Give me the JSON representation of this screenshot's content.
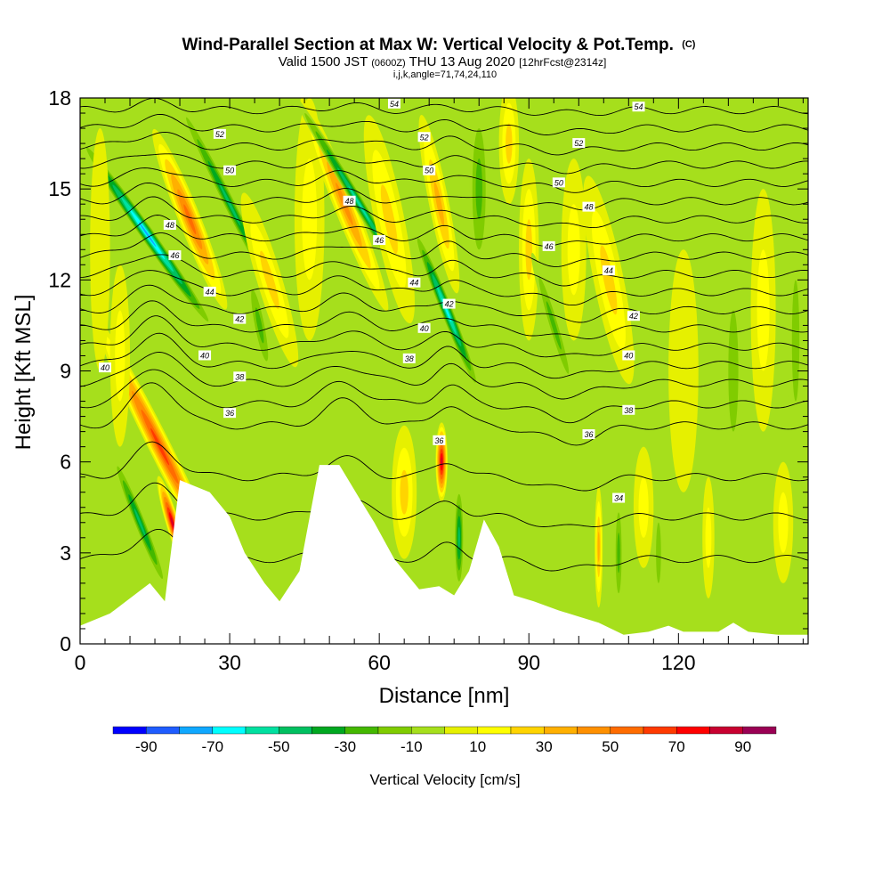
{
  "header": {
    "title_main": "Wind-Parallel Section at Max W: Vertical Velocity & Pot.Temp.",
    "title_mark": "(C)",
    "valid_a": "Valid 1500 JST",
    "valid_b": "(0600Z)",
    "valid_c": "THU 13 Aug 2020",
    "valid_d": "[12hrFcst@2314z]",
    "indices": "i,j,k,angle=71,74,24,110"
  },
  "colors": {
    "plot_bg": "#a6df1c",
    "terrain": "#ffffff",
    "contour": "#000000",
    "palette": [
      "#0000ff",
      "#1f5cff",
      "#10a8ff",
      "#00ffff",
      "#00e0a0",
      "#00c060",
      "#00a820",
      "#44b800",
      "#80cc00",
      "#a6df1c",
      "#e6f000",
      "#ffff00",
      "#ffd400",
      "#ffb000",
      "#ff9000",
      "#ff6c00",
      "#ff3a00",
      "#ff0000",
      "#c80030",
      "#9a0054",
      "#6a0088"
    ]
  },
  "chart_data": {
    "type": "heatmap",
    "xlabel": "Distance [nm]",
    "ylabel": "Height [Kft MSL]",
    "xlim": [
      0,
      146
    ],
    "ylim": [
      0,
      18
    ],
    "x_ticks": [
      "0",
      "30",
      "60",
      "90",
      "120"
    ],
    "y_ticks": [
      "0",
      "3",
      "6",
      "9",
      "12",
      "15",
      "18"
    ],
    "colorbar": {
      "label": "Vertical Velocity [cm/s]",
      "min": -100,
      "max": 100,
      "step": 10,
      "tick_labels": [
        "-90",
        "-70",
        "-50",
        "-30",
        "-10",
        "10",
        "30",
        "50",
        "70",
        "90"
      ]
    },
    "terrain": [
      [
        0,
        0.6
      ],
      [
        6,
        1.0
      ],
      [
        10,
        1.5
      ],
      [
        14,
        2.0
      ],
      [
        17,
        1.4
      ],
      [
        20,
        5.4
      ],
      [
        26,
        5.0
      ],
      [
        30,
        4.2
      ],
      [
        33,
        3.0
      ],
      [
        37,
        2.0
      ],
      [
        40,
        1.4
      ],
      [
        44,
        2.4
      ],
      [
        48,
        5.9
      ],
      [
        52,
        5.9
      ],
      [
        56,
        4.8
      ],
      [
        59,
        4.0
      ],
      [
        63,
        2.8
      ],
      [
        68,
        1.8
      ],
      [
        72,
        1.9
      ],
      [
        75,
        1.6
      ],
      [
        78,
        2.4
      ],
      [
        81,
        4.1
      ],
      [
        84,
        3.2
      ],
      [
        87,
        1.6
      ],
      [
        91,
        1.4
      ],
      [
        96,
        1.1
      ],
      [
        100,
        0.9
      ],
      [
        104,
        0.7
      ],
      [
        109,
        0.3
      ],
      [
        114,
        0.4
      ],
      [
        118,
        0.6
      ],
      [
        121,
        0.4
      ],
      [
        128,
        0.4
      ],
      [
        131,
        0.7
      ],
      [
        134,
        0.4
      ],
      [
        140,
        0.3
      ],
      [
        146,
        0.3
      ]
    ],
    "w_cells": [
      {
        "x": 13.5,
        "z": 13.5,
        "w": -85,
        "sx": 1.5,
        "sz": 4.0,
        "tilt": -0.7
      },
      {
        "x": 16,
        "z": 6.5,
        "w": 78,
        "sx": 2.2,
        "sz": 4.8,
        "tilt": -0.5
      },
      {
        "x": 18.5,
        "z": 4.0,
        "w": 92,
        "sx": 1.3,
        "sz": 1.6,
        "tilt": -0.3
      },
      {
        "x": 12,
        "z": 4.0,
        "w": -55,
        "sx": 1.2,
        "sz": 2.5,
        "tilt": -0.4
      },
      {
        "x": 22,
        "z": 14,
        "w": 60,
        "sx": 2.2,
        "sz": 3.2,
        "tilt": -0.4
      },
      {
        "x": 30,
        "z": 14.5,
        "w": -55,
        "sx": 1.3,
        "sz": 4.0,
        "tilt": -0.5
      },
      {
        "x": 36,
        "z": 10.5,
        "w": -35,
        "sx": 1.4,
        "sz": 1.8,
        "tilt": -0.2
      },
      {
        "x": 38,
        "z": 12,
        "w": 35,
        "sx": 2.5,
        "sz": 3.0,
        "tilt": -0.3
      },
      {
        "x": 46,
        "z": 14,
        "w": 25,
        "sx": 3.0,
        "sz": 4.0,
        "tilt": 0
      },
      {
        "x": 53,
        "z": 14.5,
        "w": 55,
        "sx": 2.2,
        "sz": 3.8,
        "tilt": -0.4
      },
      {
        "x": 56,
        "z": 14.5,
        "w": -65,
        "sx": 1.2,
        "sz": 4.2,
        "tilt": -0.6
      },
      {
        "x": 62,
        "z": 14,
        "w": 30,
        "sx": 3.0,
        "sz": 3.5,
        "tilt": -0.2
      },
      {
        "x": 65,
        "z": 5.0,
        "w": 35,
        "sx": 2.5,
        "sz": 2.2,
        "tilt": 0
      },
      {
        "x": 72.5,
        "z": 6.0,
        "w": 98,
        "sx": 1.2,
        "sz": 1.3,
        "tilt": 0
      },
      {
        "x": 73.5,
        "z": 11.0,
        "w": -70,
        "sx": 1.3,
        "sz": 3.0,
        "tilt": -0.4
      },
      {
        "x": 76,
        "z": 3.5,
        "w": -50,
        "sx": 1.0,
        "sz": 1.8,
        "tilt": 0
      },
      {
        "x": 72,
        "z": 14.5,
        "w": 40,
        "sx": 2.0,
        "sz": 3.0,
        "tilt": -0.2
      },
      {
        "x": 80,
        "z": 15,
        "w": -30,
        "sx": 2.0,
        "sz": 3.0,
        "tilt": 0
      },
      {
        "x": 86,
        "z": 16.5,
        "w": 35,
        "sx": 2.0,
        "sz": 2.0,
        "tilt": 0
      },
      {
        "x": 90,
        "z": 13,
        "w": 30,
        "sx": 2.0,
        "sz": 3.0,
        "tilt": 0
      },
      {
        "x": 95,
        "z": 10.5,
        "w": -35,
        "sx": 1.2,
        "sz": 2.5,
        "tilt": -0.3
      },
      {
        "x": 99,
        "z": 13,
        "w": 20,
        "sx": 2.5,
        "sz": 3.0,
        "tilt": 0
      },
      {
        "x": 104,
        "z": 3.2,
        "w": 45,
        "sx": 0.8,
        "sz": 2.0,
        "tilt": 0
      },
      {
        "x": 108,
        "z": 3.0,
        "w": -30,
        "sx": 0.9,
        "sz": 2.0,
        "tilt": 0
      },
      {
        "x": 106,
        "z": 12,
        "w": 30,
        "sx": 3.0,
        "sz": 3.5,
        "tilt": -0.2
      },
      {
        "x": 113,
        "z": 4.5,
        "w": 25,
        "sx": 2.0,
        "sz": 2.0,
        "tilt": 0
      },
      {
        "x": 116,
        "z": 3.0,
        "w": -22,
        "sx": 1.0,
        "sz": 2.0,
        "tilt": 0
      },
      {
        "x": 121,
        "z": 9.0,
        "w": 18,
        "sx": 3.0,
        "sz": 4.0,
        "tilt": 0
      },
      {
        "x": 126,
        "z": 3.5,
        "w": 20,
        "sx": 1.2,
        "sz": 2.0,
        "tilt": 0
      },
      {
        "x": 131,
        "z": 9.0,
        "w": -25,
        "sx": 2.0,
        "sz": 4.0,
        "tilt": 0
      },
      {
        "x": 137,
        "z": 11,
        "w": 25,
        "sx": 2.5,
        "sz": 4.0,
        "tilt": 0
      },
      {
        "x": 141,
        "z": 4.0,
        "w": 20,
        "sx": 2.0,
        "sz": 2.0,
        "tilt": 0
      },
      {
        "x": 143.5,
        "z": 10,
        "w": -20,
        "sx": 1.5,
        "sz": 4.0,
        "tilt": 0
      },
      {
        "x": 8,
        "z": 9.5,
        "w": 20,
        "sx": 2.0,
        "sz": 3.0,
        "tilt": 0
      },
      {
        "x": 4,
        "z": 13,
        "w": 18,
        "sx": 2.0,
        "sz": 4.0,
        "tilt": 0
      }
    ],
    "theta_lines": [
      {
        "z": 2.8,
        "bump": 1.0
      },
      {
        "z": 4.2,
        "bump": 1.1
      },
      {
        "z": 5.5,
        "bump": 1.2
      },
      {
        "z": 7.2,
        "bump": 1.6
      },
      {
        "z": 7.9,
        "bump": 1.4
      },
      {
        "z": 8.6,
        "bump": 1.2
      },
      {
        "z": 9.2,
        "bump": 1.1
      },
      {
        "z": 9.8,
        "bump": 1.0
      },
      {
        "z": 10.4,
        "bump": 0.9
      },
      {
        "z": 11.0,
        "bump": 0.9
      },
      {
        "z": 11.6,
        "bump": 0.9
      },
      {
        "z": 12.2,
        "bump": 0.8
      },
      {
        "z": 12.8,
        "bump": 0.8
      },
      {
        "z": 13.4,
        "bump": 0.7
      },
      {
        "z": 14.0,
        "bump": 0.7
      },
      {
        "z": 14.6,
        "bump": 0.6
      },
      {
        "z": 15.2,
        "bump": 0.6
      },
      {
        "z": 15.8,
        "bump": 0.5
      },
      {
        "z": 16.4,
        "bump": 0.5
      },
      {
        "z": 17.0,
        "bump": 0.4
      },
      {
        "z": 17.6,
        "bump": 0.3
      }
    ],
    "contour_labels": [
      {
        "text": "34",
        "x": 108,
        "z": 4.8
      },
      {
        "text": "36",
        "x": 72,
        "z": 6.7
      },
      {
        "text": "36",
        "x": 102,
        "z": 6.9
      },
      {
        "text": "36",
        "x": 30,
        "z": 7.6
      },
      {
        "text": "38",
        "x": 32,
        "z": 8.8
      },
      {
        "text": "38",
        "x": 66,
        "z": 9.4
      },
      {
        "text": "38",
        "x": 110,
        "z": 7.7
      },
      {
        "text": "40",
        "x": 5,
        "z": 9.1
      },
      {
        "text": "40",
        "x": 25,
        "z": 9.5
      },
      {
        "text": "40",
        "x": 69,
        "z": 10.4
      },
      {
        "text": "40",
        "x": 110,
        "z": 9.5
      },
      {
        "text": "42",
        "x": 32,
        "z": 10.7
      },
      {
        "text": "42",
        "x": 74,
        "z": 11.2
      },
      {
        "text": "42",
        "x": 111,
        "z": 10.8
      },
      {
        "text": "44",
        "x": 26,
        "z": 11.6
      },
      {
        "text": "44",
        "x": 67,
        "z": 11.9
      },
      {
        "text": "44",
        "x": 106,
        "z": 12.3
      },
      {
        "text": "46",
        "x": 19,
        "z": 12.8
      },
      {
        "text": "46",
        "x": 60,
        "z": 13.3
      },
      {
        "text": "46",
        "x": 94,
        "z": 13.1
      },
      {
        "text": "48",
        "x": 18,
        "z": 13.8
      },
      {
        "text": "48",
        "x": 54,
        "z": 14.6
      },
      {
        "text": "48",
        "x": 102,
        "z": 14.4
      },
      {
        "text": "50",
        "x": 30,
        "z": 15.6
      },
      {
        "text": "50",
        "x": 70,
        "z": 15.6
      },
      {
        "text": "50",
        "x": 96,
        "z": 15.2
      },
      {
        "text": "52",
        "x": 28,
        "z": 16.8
      },
      {
        "text": "52",
        "x": 69,
        "z": 16.7
      },
      {
        "text": "52",
        "x": 100,
        "z": 16.5
      },
      {
        "text": "54",
        "x": 63,
        "z": 17.8
      },
      {
        "text": "54",
        "x": 112,
        "z": 17.7
      }
    ]
  }
}
